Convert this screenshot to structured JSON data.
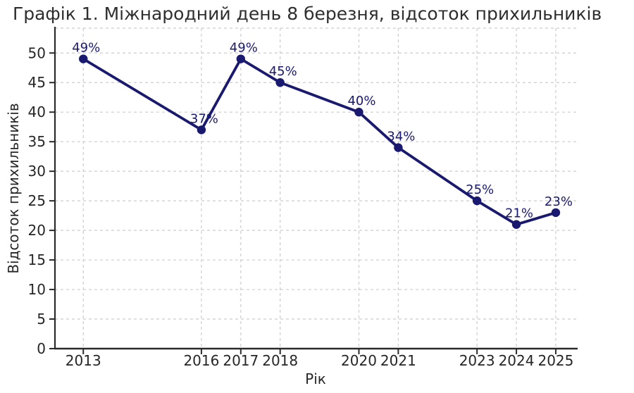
{
  "chart_data": {
    "type": "line",
    "title": "Графік 1. Міжнародний день 8 березня, відсоток прихильників",
    "xlabel": "Рік",
    "ylabel": "Відсоток прихильників",
    "x": [
      2013,
      2016,
      2017,
      2018,
      2020,
      2021,
      2023,
      2024,
      2025
    ],
    "values": [
      49,
      37,
      49,
      45,
      40,
      34,
      25,
      21,
      23
    ],
    "point_labels": [
      "49%",
      "37%",
      "49%",
      "45%",
      "40%",
      "34%",
      "25%",
      "21%",
      "23%"
    ],
    "xticks": [
      2013,
      2016,
      2017,
      2018,
      2020,
      2021,
      2023,
      2024,
      2025
    ],
    "yticks": [
      0,
      5,
      10,
      15,
      20,
      25,
      30,
      35,
      40,
      45,
      50
    ],
    "xlim": [
      2012.28,
      2025.52
    ],
    "ylim": [
      0,
      54.2
    ],
    "grid": true,
    "grid_style": "dashed",
    "legend": "none",
    "colors": {
      "line": "#191970",
      "marker": "#191970",
      "point_label": "#191970",
      "grid": "#cccccc",
      "axis": "#2b2b2b",
      "tick_text": "#262626",
      "title_text": "#2e2e2e",
      "background": "#ffffff"
    }
  }
}
